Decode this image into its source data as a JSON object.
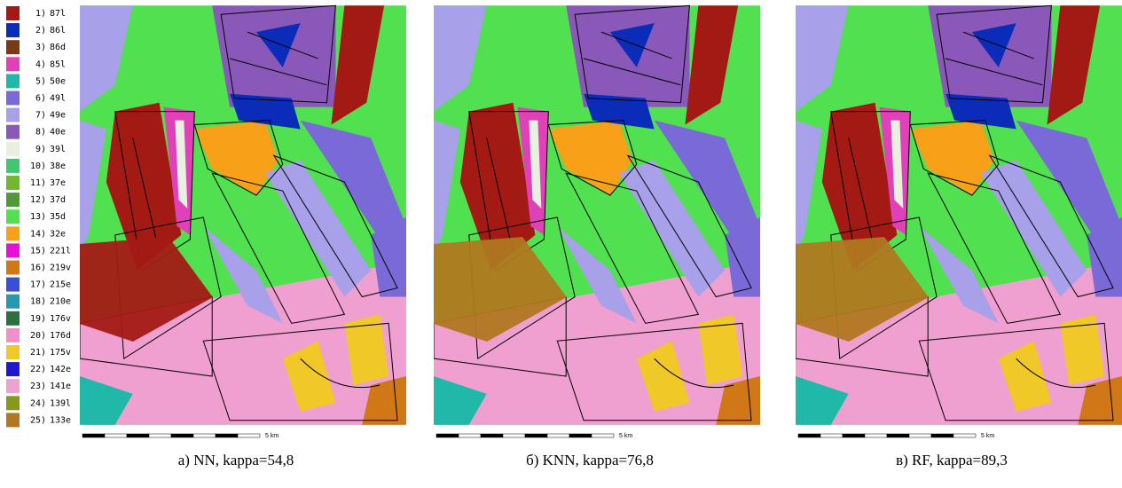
{
  "legend": [
    {
      "number": "1)",
      "code": "87l",
      "color": "#a31a15"
    },
    {
      "number": "2)",
      "code": "86l",
      "color": "#0b2cb8"
    },
    {
      "number": "3)",
      "code": "86d",
      "color": "#7a3a17"
    },
    {
      "number": "4)",
      "code": "85l",
      "color": "#e040b8"
    },
    {
      "number": "5)",
      "code": "50e",
      "color": "#20b8a8"
    },
    {
      "number": "6)",
      "code": "49l",
      "color": "#7a6ad8"
    },
    {
      "number": "7)",
      "code": "49e",
      "color": "#a8a0e8"
    },
    {
      "number": "8)",
      "code": "40e",
      "color": "#8a58b8"
    },
    {
      "number": "9)",
      "code": "39l",
      "color": "#e8f0e0"
    },
    {
      "number": "10)",
      "code": "38e",
      "color": "#40c870"
    },
    {
      "number": "11)",
      "code": "37e",
      "color": "#70b830"
    },
    {
      "number": "12)",
      "code": "37d",
      "color": "#509838"
    },
    {
      "number": "13)",
      "code": "35d",
      "color": "#50e050"
    },
    {
      "number": "14)",
      "code": "32e",
      "color": "#f8a018"
    },
    {
      "number": "15)",
      "code": "221l",
      "color": "#e810d8"
    },
    {
      "number": "16)",
      "code": "219v",
      "color": "#d07818"
    },
    {
      "number": "17)",
      "code": "215e",
      "color": "#3850d8"
    },
    {
      "number": "18)",
      "code": "210e",
      "color": "#2898b0"
    },
    {
      "number": "19)",
      "code": "176v",
      "color": "#2a7040"
    },
    {
      "number": "20)",
      "code": "176d",
      "color": "#f090c8"
    },
    {
      "number": "21)",
      "code": "175v",
      "color": "#f0c828"
    },
    {
      "number": "22)",
      "code": "142e",
      "color": "#2018d0"
    },
    {
      "number": "23)",
      "code": "141e",
      "color": "#f0a0d0"
    },
    {
      "number": "24)",
      "code": "139l",
      "color": "#889818"
    },
    {
      "number": "25)",
      "code": "133e",
      "color": "#b07820"
    }
  ],
  "panels": [
    {
      "caption": "а) NN, kappa=54,8",
      "scale": "5 km"
    },
    {
      "caption": "б) KNN, kappa=76,8",
      "scale": "5 km"
    },
    {
      "caption": "в) RF, kappa=89,3",
      "scale": "5 km"
    }
  ]
}
